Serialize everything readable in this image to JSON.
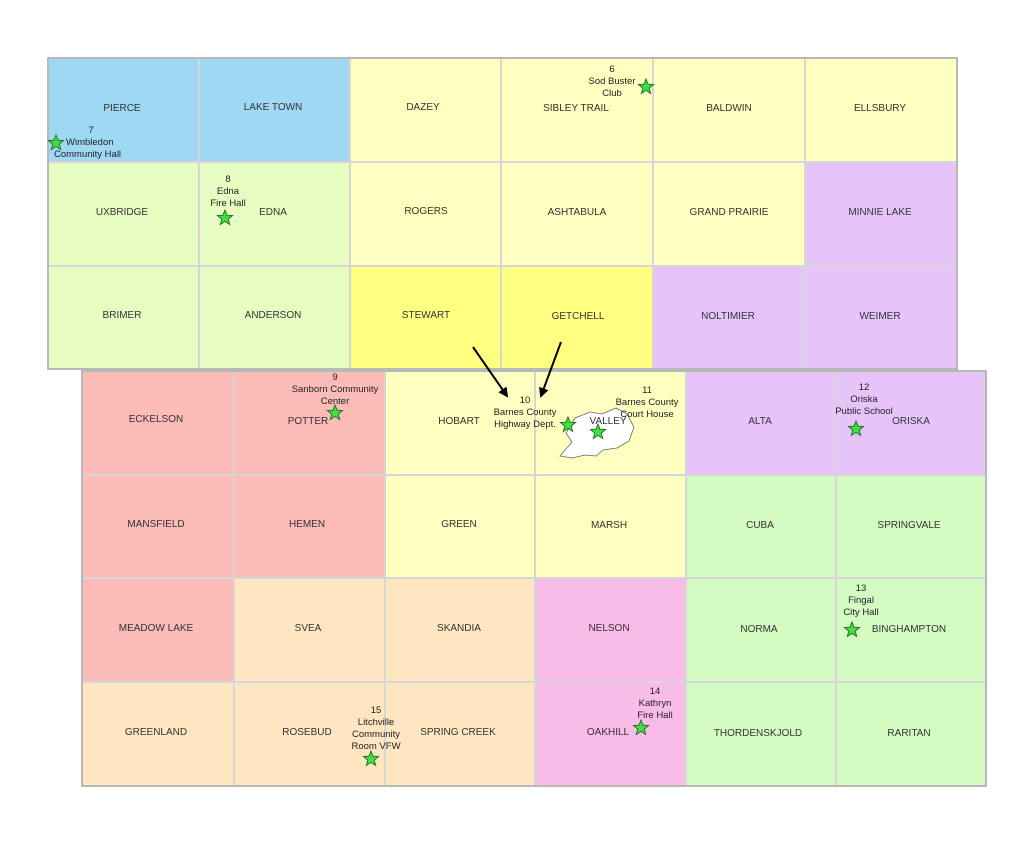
{
  "colors": {
    "blue": "#9ed8f2",
    "lime": "#e7fcc0",
    "pale_yellow": "#ffffc0",
    "bright_yellow": "#ffff80",
    "lavender": "#e6c4fa",
    "salmon": "#fbbcb8",
    "tan": "#ffe6c0",
    "pink": "#f9bce8",
    "green": "#d4fcc2",
    "border": "#d6d6d6",
    "star": "#44dd44"
  },
  "townships": [
    {
      "name": "PIERCE",
      "color": "blue"
    },
    {
      "name": "LAKE TOWN",
      "color": "blue"
    },
    {
      "name": "DAZEY",
      "color": "pale_yellow"
    },
    {
      "name": "SIBLEY TRAIL",
      "color": "pale_yellow"
    },
    {
      "name": "BALDWIN",
      "color": "pale_yellow"
    },
    {
      "name": "ELLSBURY",
      "color": "pale_yellow"
    },
    {
      "name": "UXBRIDGE",
      "color": "lime"
    },
    {
      "name": "EDNA",
      "color": "lime"
    },
    {
      "name": "ROGERS",
      "color": "pale_yellow"
    },
    {
      "name": "ASHTABULA",
      "color": "pale_yellow"
    },
    {
      "name": "GRAND PRAIRIE",
      "color": "pale_yellow"
    },
    {
      "name": "MINNIE LAKE",
      "color": "lavender"
    },
    {
      "name": "BRIMER",
      "color": "lime"
    },
    {
      "name": "ANDERSON",
      "color": "lime"
    },
    {
      "name": "STEWART",
      "color": "bright_yellow"
    },
    {
      "name": "GETCHELL",
      "color": "bright_yellow"
    },
    {
      "name": "NOLTIMIER",
      "color": "lavender"
    },
    {
      "name": "WEIMER",
      "color": "lavender"
    },
    {
      "name": "ECKELSON",
      "color": "salmon"
    },
    {
      "name": "POTTER",
      "color": "salmon"
    },
    {
      "name": "HOBART",
      "color": "pale_yellow"
    },
    {
      "name": "VALLEY",
      "color": "pale_yellow"
    },
    {
      "name": "ALTA",
      "color": "lavender"
    },
    {
      "name": "ORISKA",
      "color": "lavender"
    },
    {
      "name": "MANSFIELD",
      "color": "salmon"
    },
    {
      "name": "HEMEN",
      "color": "salmon"
    },
    {
      "name": "GREEN",
      "color": "pale_yellow"
    },
    {
      "name": "MARSH",
      "color": "pale_yellow"
    },
    {
      "name": "CUBA",
      "color": "green"
    },
    {
      "name": "SPRINGVALE",
      "color": "green"
    },
    {
      "name": "MEADOW LAKE",
      "color": "salmon"
    },
    {
      "name": "SVEA",
      "color": "tan"
    },
    {
      "name": "SKANDIA",
      "color": "tan"
    },
    {
      "name": "NELSON",
      "color": "pink"
    },
    {
      "name": "NORMA",
      "color": "green"
    },
    {
      "name": "BINGHAMPTON",
      "color": "green"
    },
    {
      "name": "GREENLAND",
      "color": "tan"
    },
    {
      "name": "ROSEBUD",
      "color": "tan"
    },
    {
      "name": "SPRING CREEK",
      "color": "tan"
    },
    {
      "name": "OAKHILL",
      "color": "pink"
    },
    {
      "name": "THORDENSKJOLD",
      "color": "green"
    },
    {
      "name": "RARITAN",
      "color": "green"
    }
  ],
  "sites": [
    {
      "number": "6",
      "lines": [
        "Sod Buster",
        "Club"
      ]
    },
    {
      "number": "7",
      "lines": [
        "Wimbledon",
        "Community Hall"
      ]
    },
    {
      "number": "8",
      "lines": [
        "Edna",
        "Fire Hall"
      ]
    },
    {
      "number": "9",
      "lines": [
        "Sanborn Community",
        "Center"
      ]
    },
    {
      "number": "10",
      "lines": [
        "Barnes County",
        "Highway Dept."
      ]
    },
    {
      "number": "11",
      "lines": [
        "Barnes County",
        "Court House"
      ]
    },
    {
      "number": "12",
      "lines": [
        "Oriska",
        "Public School"
      ]
    },
    {
      "number": "13",
      "lines": [
        "Fingal",
        "City Hall"
      ]
    },
    {
      "number": "14",
      "lines": [
        "Kathryn",
        "Fire Hall"
      ]
    },
    {
      "number": "15",
      "lines": [
        "Litchville",
        "Community",
        "Room VFW"
      ]
    }
  ]
}
